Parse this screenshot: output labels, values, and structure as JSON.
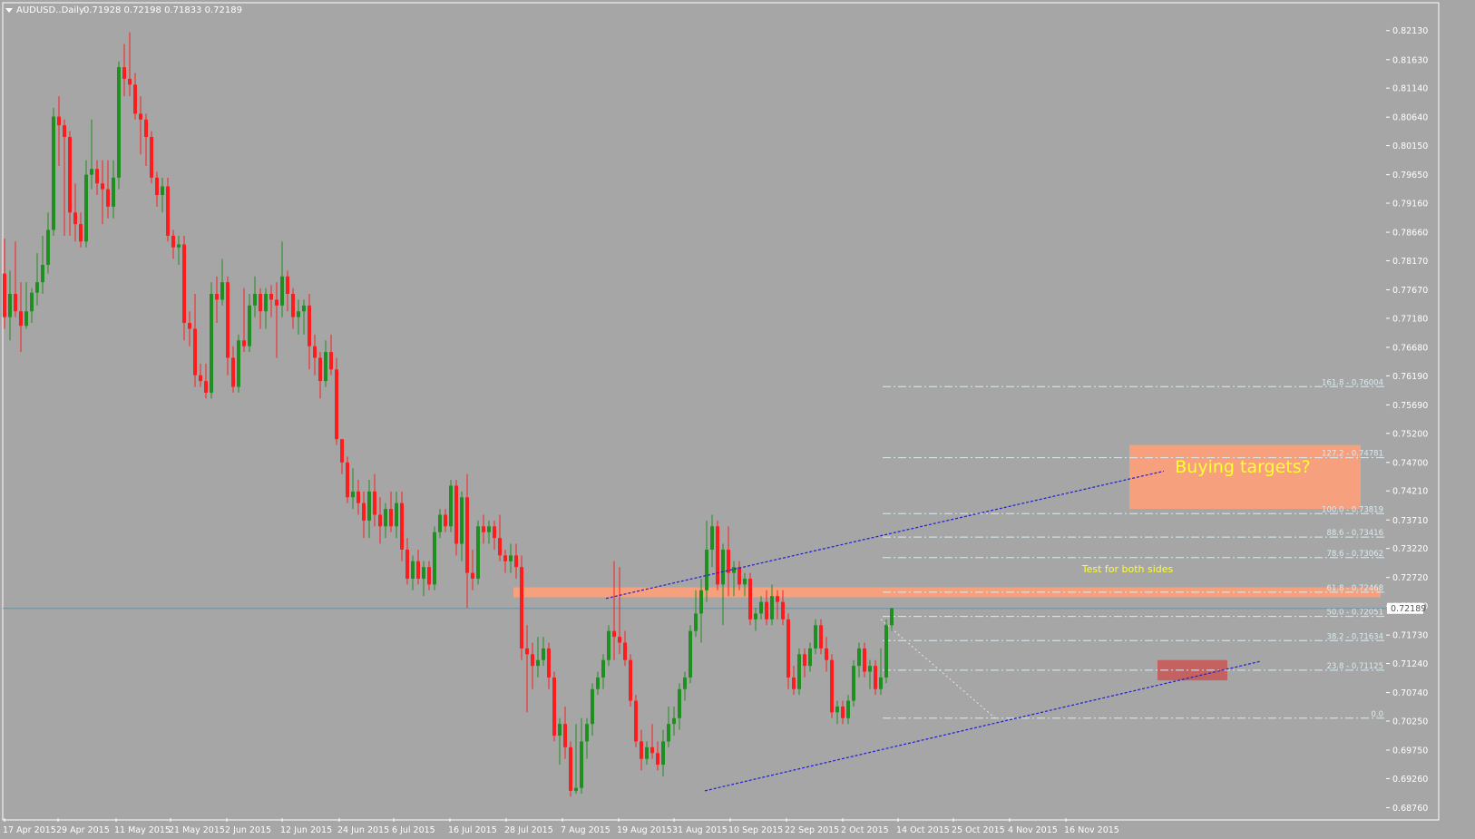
{
  "header": {
    "symbol": "AUDUSD..Daily",
    "ohlc": "0.71928 0.72198 0.71833 0.72189"
  },
  "colors": {
    "background": "#a6a6a6",
    "bull": "#1f8f1f",
    "bear": "#ff1c1c",
    "zone": "#ffa07a",
    "target_zone": "#ffa07a",
    "stop_zone": "#c85a5a",
    "trendline": "#1f1fd0",
    "fib_line": "#d9ecf2",
    "bid_line": "#6f8fa0",
    "annotation": "#ffff33"
  },
  "chart_data": {
    "type": "candlestick",
    "ylim": [
      0.6858,
      0.825
    ],
    "y_ticks": [
      "0.82130",
      "0.81630",
      "0.81140",
      "0.80640",
      "0.80150",
      "0.79650",
      "0.79160",
      "0.78660",
      "0.78170",
      "0.77670",
      "0.77180",
      "0.76680",
      "0.76190",
      "0.75690",
      "0.75200",
      "0.74700",
      "0.74210",
      "0.73710",
      "0.73220",
      "0.72720",
      "0.72230",
      "0.71730",
      "0.71240",
      "0.70740",
      "0.70250",
      "0.69750",
      "0.69260",
      "0.68760"
    ],
    "x_ticks": [
      "17 Apr 2015",
      "29 Apr 2015",
      "11 May 2015",
      "21 May 2015",
      "2 Jun 2015",
      "12 Jun 2015",
      "24 Jun 2015",
      "6 Jul 2015",
      "16 Jul 2015",
      "28 Jul 2015",
      "7 Aug 2015",
      "19 Aug 2015",
      "31 Aug 2015",
      "10 Sep 2015",
      "22 Sep 2015",
      "2 Oct 2015",
      "14 Oct 2015",
      "25 Oct 2015",
      "4 Nov 2015",
      "16 Nov 2015"
    ],
    "current_price": "0.72189",
    "candles": [
      [
        0.7795,
        0.7855,
        0.77,
        0.772
      ],
      [
        0.772,
        0.78,
        0.768,
        0.776
      ],
      [
        0.776,
        0.785,
        0.772,
        0.773
      ],
      [
        0.773,
        0.778,
        0.766,
        0.7705
      ],
      [
        0.7705,
        0.778,
        0.77,
        0.773
      ],
      [
        0.773,
        0.777,
        0.771,
        0.7762
      ],
      [
        0.7762,
        0.783,
        0.774,
        0.778
      ],
      [
        0.778,
        0.786,
        0.776,
        0.781
      ],
      [
        0.781,
        0.79,
        0.7795,
        0.787
      ],
      [
        0.787,
        0.808,
        0.786,
        0.8065
      ],
      [
        0.8065,
        0.81,
        0.798,
        0.805
      ],
      [
        0.805,
        0.806,
        0.786,
        0.803
      ],
      [
        0.803,
        0.804,
        0.786,
        0.79
      ],
      [
        0.79,
        0.795,
        0.785,
        0.788
      ],
      [
        0.788,
        0.79,
        0.784,
        0.785
      ],
      [
        0.785,
        0.799,
        0.784,
        0.7965
      ],
      [
        0.7965,
        0.806,
        0.794,
        0.7975
      ],
      [
        0.7975,
        0.799,
        0.793,
        0.795
      ],
      [
        0.795,
        0.799,
        0.788,
        0.794
      ],
      [
        0.794,
        0.799,
        0.789,
        0.791
      ],
      [
        0.791,
        0.799,
        0.789,
        0.796
      ],
      [
        0.796,
        0.816,
        0.794,
        0.815
      ],
      [
        0.815,
        0.819,
        0.81,
        0.813
      ],
      [
        0.813,
        0.821,
        0.81,
        0.812
      ],
      [
        0.812,
        0.814,
        0.806,
        0.807
      ],
      [
        0.807,
        0.81,
        0.8,
        0.806
      ],
      [
        0.806,
        0.807,
        0.798,
        0.803
      ],
      [
        0.803,
        0.804,
        0.795,
        0.796
      ],
      [
        0.796,
        0.797,
        0.791,
        0.793
      ],
      [
        0.793,
        0.796,
        0.79,
        0.7945
      ],
      [
        0.7945,
        0.796,
        0.785,
        0.786
      ],
      [
        0.786,
        0.787,
        0.782,
        0.784
      ],
      [
        0.784,
        0.786,
        0.781,
        0.7845
      ],
      [
        0.7845,
        0.786,
        0.768,
        0.771
      ],
      [
        0.771,
        0.773,
        0.767,
        0.77
      ],
      [
        0.77,
        0.776,
        0.76,
        0.762
      ],
      [
        0.762,
        0.764,
        0.76,
        0.761
      ],
      [
        0.761,
        0.764,
        0.758,
        0.759
      ],
      [
        0.759,
        0.778,
        0.758,
        0.776
      ],
      [
        0.776,
        0.779,
        0.771,
        0.775
      ],
      [
        0.775,
        0.782,
        0.774,
        0.778
      ],
      [
        0.778,
        0.779,
        0.762,
        0.765
      ],
      [
        0.765,
        0.767,
        0.759,
        0.76
      ],
      [
        0.76,
        0.769,
        0.759,
        0.768
      ],
      [
        0.768,
        0.777,
        0.766,
        0.767
      ],
      [
        0.767,
        0.776,
        0.766,
        0.774
      ],
      [
        0.774,
        0.779,
        0.772,
        0.776
      ],
      [
        0.776,
        0.777,
        0.77,
        0.773
      ],
      [
        0.773,
        0.777,
        0.77,
        0.776
      ],
      [
        0.776,
        0.7775,
        0.772,
        0.775
      ],
      [
        0.775,
        0.778,
        0.765,
        0.774
      ],
      [
        0.774,
        0.785,
        0.772,
        0.779
      ],
      [
        0.779,
        0.78,
        0.773,
        0.776
      ],
      [
        0.776,
        0.777,
        0.77,
        0.772
      ],
      [
        0.772,
        0.775,
        0.769,
        0.773
      ],
      [
        0.773,
        0.775,
        0.769,
        0.774
      ],
      [
        0.774,
        0.776,
        0.763,
        0.767
      ],
      [
        0.767,
        0.769,
        0.762,
        0.765
      ],
      [
        0.765,
        0.766,
        0.758,
        0.761
      ],
      [
        0.761,
        0.768,
        0.76,
        0.766
      ],
      [
        0.766,
        0.769,
        0.762,
        0.763
      ],
      [
        0.763,
        0.765,
        0.75,
        0.751
      ],
      [
        0.751,
        0.751,
        0.745,
        0.747
      ],
      [
        0.747,
        0.748,
        0.74,
        0.741
      ],
      [
        0.741,
        0.746,
        0.739,
        0.742
      ],
      [
        0.742,
        0.744,
        0.738,
        0.74
      ],
      [
        0.74,
        0.742,
        0.734,
        0.737
      ],
      [
        0.737,
        0.744,
        0.734,
        0.742
      ],
      [
        0.742,
        0.745,
        0.736,
        0.738
      ],
      [
        0.738,
        0.741,
        0.733,
        0.736
      ],
      [
        0.736,
        0.74,
        0.734,
        0.739
      ],
      [
        0.739,
        0.742,
        0.735,
        0.736
      ],
      [
        0.736,
        0.742,
        0.734,
        0.74
      ],
      [
        0.74,
        0.742,
        0.73,
        0.732
      ],
      [
        0.732,
        0.734,
        0.726,
        0.727
      ],
      [
        0.727,
        0.731,
        0.725,
        0.73
      ],
      [
        0.73,
        0.732,
        0.726,
        0.727
      ],
      [
        0.727,
        0.73,
        0.724,
        0.729
      ],
      [
        0.729,
        0.73,
        0.725,
        0.726
      ],
      [
        0.726,
        0.736,
        0.725,
        0.735
      ],
      [
        0.735,
        0.739,
        0.734,
        0.738
      ],
      [
        0.738,
        0.739,
        0.735,
        0.736
      ],
      [
        0.736,
        0.744,
        0.735,
        0.743
      ],
      [
        0.743,
        0.744,
        0.731,
        0.733
      ],
      [
        0.733,
        0.742,
        0.73,
        0.741
      ],
      [
        0.741,
        0.745,
        0.722,
        0.728
      ],
      [
        0.728,
        0.732,
        0.725,
        0.727
      ],
      [
        0.727,
        0.737,
        0.726,
        0.736
      ],
      [
        0.736,
        0.738,
        0.733,
        0.735
      ],
      [
        0.735,
        0.737,
        0.733,
        0.736
      ],
      [
        0.736,
        0.737,
        0.732,
        0.734
      ],
      [
        0.734,
        0.738,
        0.73,
        0.731
      ],
      [
        0.731,
        0.732,
        0.728,
        0.73
      ],
      [
        0.73,
        0.733,
        0.728,
        0.731
      ],
      [
        0.731,
        0.733,
        0.727,
        0.729
      ],
      [
        0.729,
        0.731,
        0.713,
        0.715
      ],
      [
        0.715,
        0.719,
        0.704,
        0.714
      ],
      [
        0.714,
        0.716,
        0.708,
        0.712
      ],
      [
        0.712,
        0.717,
        0.71,
        0.713
      ],
      [
        0.713,
        0.717,
        0.712,
        0.715
      ],
      [
        0.715,
        0.716,
        0.708,
        0.71
      ],
      [
        0.71,
        0.711,
        0.699,
        0.7
      ],
      [
        0.7,
        0.703,
        0.695,
        0.702
      ],
      [
        0.702,
        0.705,
        0.696,
        0.698
      ],
      [
        0.698,
        0.699,
        0.6895,
        0.6905
      ],
      [
        0.6905,
        0.702,
        0.69,
        0.691
      ],
      [
        0.691,
        0.703,
        0.69,
        0.699
      ],
      [
        0.699,
        0.703,
        0.696,
        0.702
      ],
      [
        0.702,
        0.709,
        0.7,
        0.708
      ],
      [
        0.708,
        0.711,
        0.707,
        0.71
      ],
      [
        0.71,
        0.714,
        0.708,
        0.713
      ],
      [
        0.713,
        0.719,
        0.712,
        0.718
      ],
      [
        0.718,
        0.73,
        0.713,
        0.717
      ],
      [
        0.717,
        0.729,
        0.714,
        0.716
      ],
      [
        0.716,
        0.718,
        0.712,
        0.713
      ],
      [
        0.713,
        0.714,
        0.705,
        0.706
      ],
      [
        0.706,
        0.707,
        0.698,
        0.699
      ],
      [
        0.699,
        0.701,
        0.694,
        0.696
      ],
      [
        0.696,
        0.699,
        0.695,
        0.698
      ],
      [
        0.698,
        0.702,
        0.696,
        0.697
      ],
      [
        0.697,
        0.699,
        0.694,
        0.695
      ],
      [
        0.695,
        0.701,
        0.693,
        0.699
      ],
      [
        0.699,
        0.705,
        0.698,
        0.702
      ],
      [
        0.702,
        0.705,
        0.7,
        0.703
      ],
      [
        0.703,
        0.709,
        0.701,
        0.708
      ],
      [
        0.708,
        0.711,
        0.706,
        0.71
      ],
      [
        0.71,
        0.719,
        0.709,
        0.718
      ],
      [
        0.718,
        0.725,
        0.717,
        0.721
      ],
      [
        0.721,
        0.727,
        0.716,
        0.725
      ],
      [
        0.725,
        0.737,
        0.723,
        0.732
      ],
      [
        0.732,
        0.738,
        0.729,
        0.736
      ],
      [
        0.736,
        0.737,
        0.725,
        0.726
      ],
      [
        0.726,
        0.733,
        0.719,
        0.732
      ],
      [
        0.732,
        0.736,
        0.724,
        0.728
      ],
      [
        0.728,
        0.73,
        0.724,
        0.729
      ],
      [
        0.729,
        0.73,
        0.725,
        0.726
      ],
      [
        0.726,
        0.728,
        0.724,
        0.727
      ],
      [
        0.727,
        0.728,
        0.719,
        0.72
      ],
      [
        0.72,
        0.722,
        0.718,
        0.721
      ],
      [
        0.721,
        0.724,
        0.72,
        0.723
      ],
      [
        0.723,
        0.725,
        0.719,
        0.72
      ],
      [
        0.72,
        0.726,
        0.719,
        0.724
      ],
      [
        0.724,
        0.725,
        0.72,
        0.723
      ],
      [
        0.723,
        0.725,
        0.719,
        0.72
      ],
      [
        0.72,
        0.721,
        0.708,
        0.71
      ],
      [
        0.71,
        0.712,
        0.707,
        0.708
      ],
      [
        0.708,
        0.715,
        0.707,
        0.714
      ],
      [
        0.714,
        0.715,
        0.71,
        0.712
      ],
      [
        0.712,
        0.716,
        0.711,
        0.715
      ],
      [
        0.715,
        0.72,
        0.714,
        0.719
      ],
      [
        0.719,
        0.72,
        0.714,
        0.715
      ],
      [
        0.715,
        0.717,
        0.711,
        0.713
      ],
      [
        0.713,
        0.714,
        0.703,
        0.704
      ],
      [
        0.704,
        0.706,
        0.702,
        0.705
      ],
      [
        0.705,
        0.706,
        0.702,
        0.703
      ],
      [
        0.703,
        0.707,
        0.702,
        0.706
      ],
      [
        0.706,
        0.713,
        0.705,
        0.712
      ],
      [
        0.712,
        0.716,
        0.71,
        0.715
      ],
      [
        0.715,
        0.716,
        0.71,
        0.711
      ],
      [
        0.711,
        0.713,
        0.708,
        0.712
      ],
      [
        0.712,
        0.713,
        0.707,
        0.708
      ],
      [
        0.708,
        0.715,
        0.707,
        0.71
      ],
      [
        0.71,
        0.72,
        0.709,
        0.719
      ],
      [
        0.719,
        0.722,
        0.718,
        0.7219
      ]
    ],
    "fibonacci": [
      {
        "label": "161.8 - 0.76004",
        "value": 0.76004
      },
      {
        "label": "127.2 - 0.74781",
        "value": 0.74781
      },
      {
        "label": "100.0 - 0.73819",
        "value": 0.73819
      },
      {
        "label": "88.6 - 0.73416",
        "value": 0.73416
      },
      {
        "label": "78.6 - 0.73062",
        "value": 0.73062
      },
      {
        "label": "61.8 - 0.72468",
        "value": 0.72468
      },
      {
        "label": "50.0 - 0.72051",
        "value": 0.72051
      },
      {
        "label": "38.2 - 0.71634",
        "value": 0.71634
      },
      {
        "label": "23.8 - 0.71125",
        "value": 0.71125
      },
      {
        "label": "0.0",
        "value": 0.703
      }
    ],
    "zones": [
      {
        "name": "resistance-zone",
        "y_top": 0.7255,
        "y_bottom": 0.7238
      },
      {
        "name": "target-zone",
        "y_top": 0.75,
        "y_bottom": 0.739
      },
      {
        "name": "stop-zone",
        "y_top": 0.713,
        "y_bottom": 0.7095
      }
    ],
    "annotations": {
      "test_zone_label": "Test for both sides",
      "target_label": "Buying targets?"
    }
  }
}
